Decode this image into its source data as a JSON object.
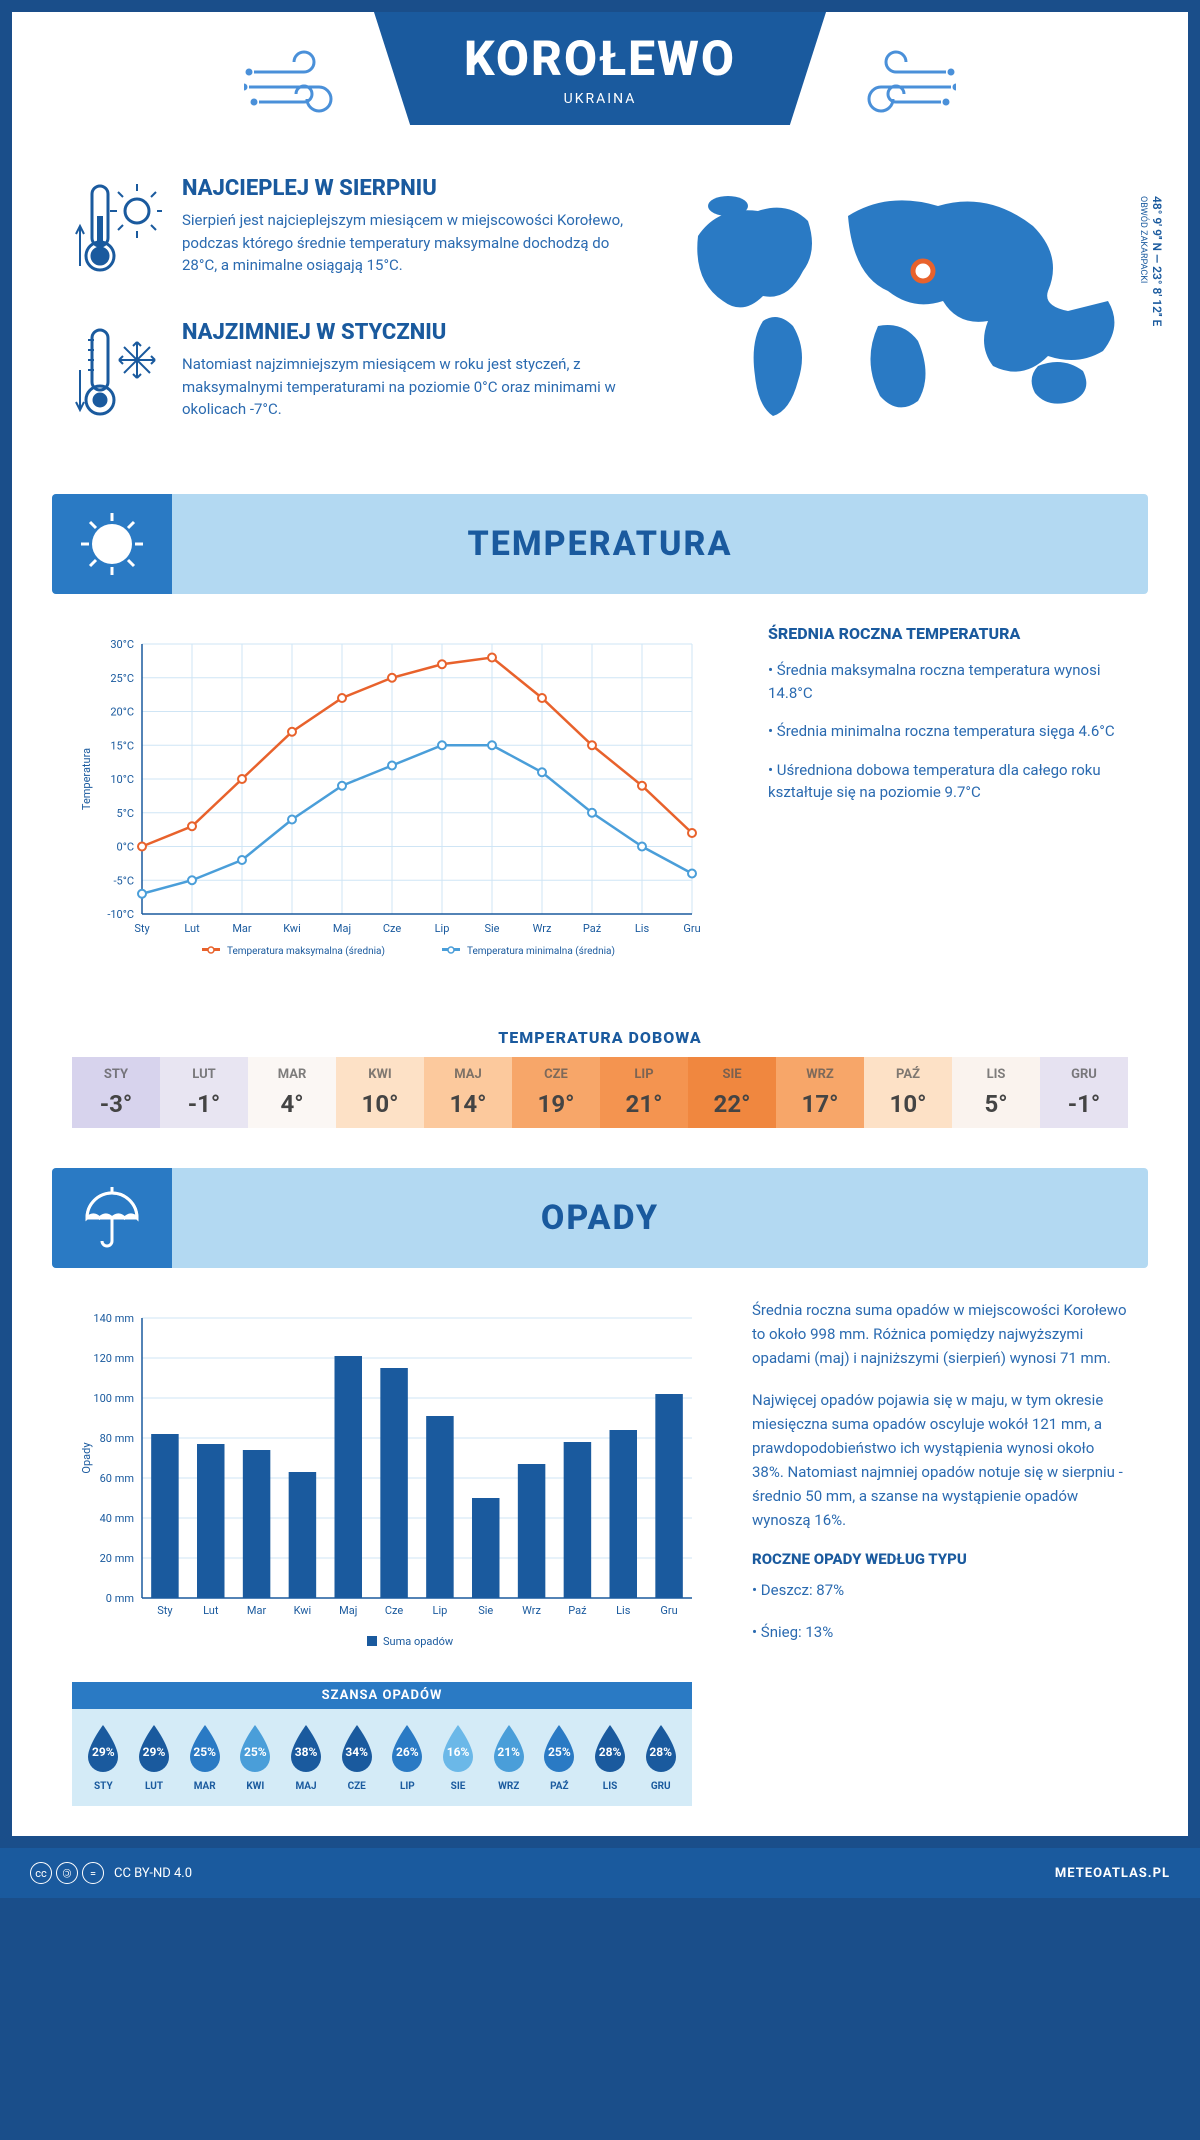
{
  "header": {
    "title": "KOROŁEWO",
    "subtitle": "UKRAINA"
  },
  "intro": {
    "warm": {
      "heading": "NAJCIEPLEJ W SIERPNIU",
      "text": "Sierpień jest najcieplejszym miesiącem w miejscowości Korołewo, podczas którego średnie temperatury maksymalne dochodzą do 28°C, a minimalne osiągają 15°C."
    },
    "cold": {
      "heading": "NAJZIMNIEJ W STYCZNIU",
      "text": "Natomiast najzimniejszym miesiącem w roku jest styczeń, z maksymalnymi temperaturami na poziomie 0°C oraz minimami w okolicach -7°C."
    },
    "coords": "48° 9' 9'' N — 23° 8' 12'' E",
    "region": "OBWÓD ZAKARPACKI"
  },
  "temperature": {
    "section_title": "TEMPERATURA",
    "chart": {
      "months": [
        "Sty",
        "Lut",
        "Mar",
        "Kwi",
        "Maj",
        "Cze",
        "Lip",
        "Sie",
        "Wrz",
        "Paź",
        "Lis",
        "Gru"
      ],
      "max_series": [
        0,
        3,
        10,
        17,
        22,
        25,
        27,
        28,
        22,
        15,
        9,
        2
      ],
      "min_series": [
        -7,
        -5,
        -2,
        4,
        9,
        12,
        15,
        15,
        11,
        5,
        0,
        -4
      ],
      "max_color": "#e8622c",
      "min_color": "#4a9ed9",
      "grid_color": "#cfe5f5",
      "ylim": [
        -10,
        30
      ],
      "ylabel": "Temperatura",
      "legend_max": "Temperatura maksymalna (średnia)",
      "legend_min": "Temperatura minimalna (średnia)"
    },
    "side": {
      "heading": "ŚREDNIA ROCZNA TEMPERATURA",
      "bullet1": "• Średnia maksymalna roczna temperatura wynosi 14.8°C",
      "bullet2": "• Średnia minimalna roczna temperatura sięga 4.6°C",
      "bullet3": "• Uśredniona dobowa temperatura dla całego roku kształtuje się na poziomie 9.7°C"
    },
    "strip": {
      "title": "TEMPERATURA DOBOWA",
      "months": [
        "STY",
        "LUT",
        "MAR",
        "KWI",
        "MAJ",
        "CZE",
        "LIP",
        "SIE",
        "WRZ",
        "PAŹ",
        "LIS",
        "GRU"
      ],
      "values": [
        "-3°",
        "-1°",
        "4°",
        "10°",
        "14°",
        "19°",
        "21°",
        "22°",
        "17°",
        "10°",
        "5°",
        "-1°"
      ],
      "colors": [
        "#d7d3ed",
        "#e8e5f2",
        "#fbf7f4",
        "#fde1c6",
        "#fcc99d",
        "#f7a669",
        "#f49450",
        "#f0873f",
        "#f7a669",
        "#fde1c6",
        "#faf3ee",
        "#e6e2f1"
      ]
    }
  },
  "rain": {
    "section_title": "OPADY",
    "chart": {
      "months": [
        "Sty",
        "Lut",
        "Mar",
        "Kwi",
        "Maj",
        "Cze",
        "Lip",
        "Sie",
        "Wrz",
        "Paź",
        "Lis",
        "Gru"
      ],
      "values": [
        82,
        77,
        74,
        63,
        121,
        115,
        91,
        50,
        67,
        78,
        84,
        102
      ],
      "bar_color": "#1a5a9e",
      "grid_color": "#cfe5f5",
      "ylim": [
        0,
        140
      ],
      "ytick_step": 20,
      "ylabel": "Opady",
      "legend": "Suma opadów"
    },
    "text1": "Średnia roczna suma opadów w miejscowości Korołewo to około 998 mm. Różnica pomiędzy najwyższymi opadami (maj) i najniższymi (sierpień) wynosi 71 mm.",
    "text2": "Najwięcej opadów pojawia się w maju, w tym okresie miesięczna suma opadów oscyluje wokół 121 mm, a prawdopodobieństwo ich wystąpienia wynosi około 38%. Natomiast najmniej opadów notuje się w sierpniu - średnio 50 mm, a szanse na wystąpienie opadów wynoszą 16%.",
    "chance": {
      "title": "SZANSA OPADÓW",
      "months": [
        "STY",
        "LUT",
        "MAR",
        "KWI",
        "MAJ",
        "CZE",
        "LIP",
        "SIE",
        "WRZ",
        "PAŹ",
        "LIS",
        "GRU"
      ],
      "values": [
        "29%",
        "29%",
        "25%",
        "25%",
        "38%",
        "34%",
        "26%",
        "16%",
        "21%",
        "25%",
        "28%",
        "28%"
      ],
      "colors": [
        "#1a5a9e",
        "#1a5a9e",
        "#2a7ac4",
        "#4a9ed9",
        "#1a5a9e",
        "#1a5a9e",
        "#2a7ac4",
        "#6bb8e8",
        "#4a9ed9",
        "#2a7ac4",
        "#1a5a9e",
        "#1a5a9e"
      ]
    },
    "by_type": {
      "heading": "ROCZNE OPADY WEDŁUG TYPU",
      "rain": "• Deszcz: 87%",
      "snow": "• Śnieg: 13%"
    }
  },
  "footer": {
    "license": "CC BY-ND 4.0",
    "site": "METEOATLAS.PL"
  }
}
